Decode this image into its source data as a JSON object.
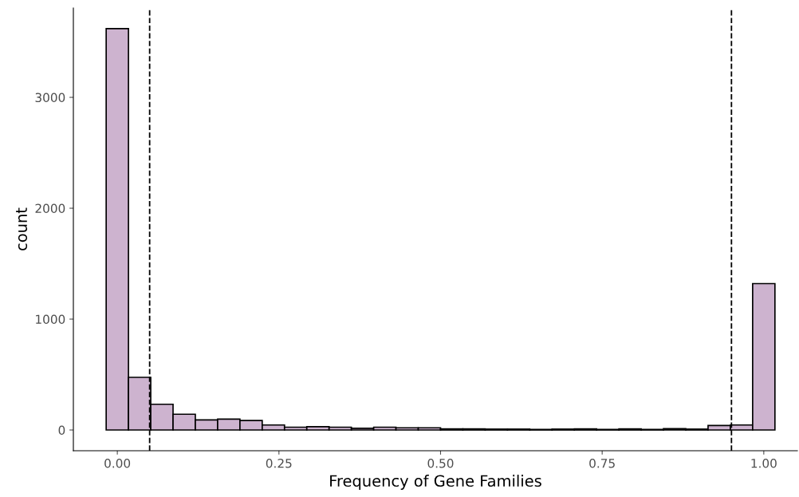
{
  "chart_data": {
    "type": "histogram",
    "xlabel": "Frequency of Gene Families",
    "ylabel": "count",
    "bins": [
      -0.01724,
      0.01724,
      0.05172,
      0.08621,
      0.12069,
      0.15517,
      0.18966,
      0.22414,
      0.25862,
      0.2931,
      0.32759,
      0.36207,
      0.39655,
      0.43103,
      0.46552,
      0.5,
      0.53448,
      0.56897,
      0.60345,
      0.63793,
      0.67241,
      0.7069,
      0.74138,
      0.77586,
      0.81034,
      0.84483,
      0.87931,
      0.91379,
      0.94828,
      0.98276,
      1.01724
    ],
    "values": [
      3620,
      475,
      232,
      142,
      91,
      98,
      86,
      45,
      25,
      30,
      25,
      15,
      25,
      20,
      20,
      10,
      10,
      8,
      8,
      5,
      8,
      10,
      5,
      10,
      5,
      12,
      8,
      40,
      45,
      1320
    ],
    "color": "#cdb3cf",
    "xlim": [
      -0.068,
      1.052
    ],
    "ylim": [
      -187,
      3806
    ],
    "xticks": [
      {
        "value": 0,
        "label": "0.00"
      },
      {
        "value": 0.25,
        "label": "0.25"
      },
      {
        "value": 0.5,
        "label": "0.50"
      },
      {
        "value": 0.75,
        "label": "0.75"
      },
      {
        "value": 1,
        "label": "1.00"
      }
    ],
    "yticks": [
      0,
      1000,
      2000,
      3000
    ],
    "ref_lines": [
      {
        "axis": "x",
        "value": 0.05,
        "line_style": "dashed",
        "color": "#000000"
      },
      {
        "axis": "x",
        "value": 0.95,
        "line_style": "dashed",
        "color": "#000000"
      }
    ],
    "grid": false
  }
}
